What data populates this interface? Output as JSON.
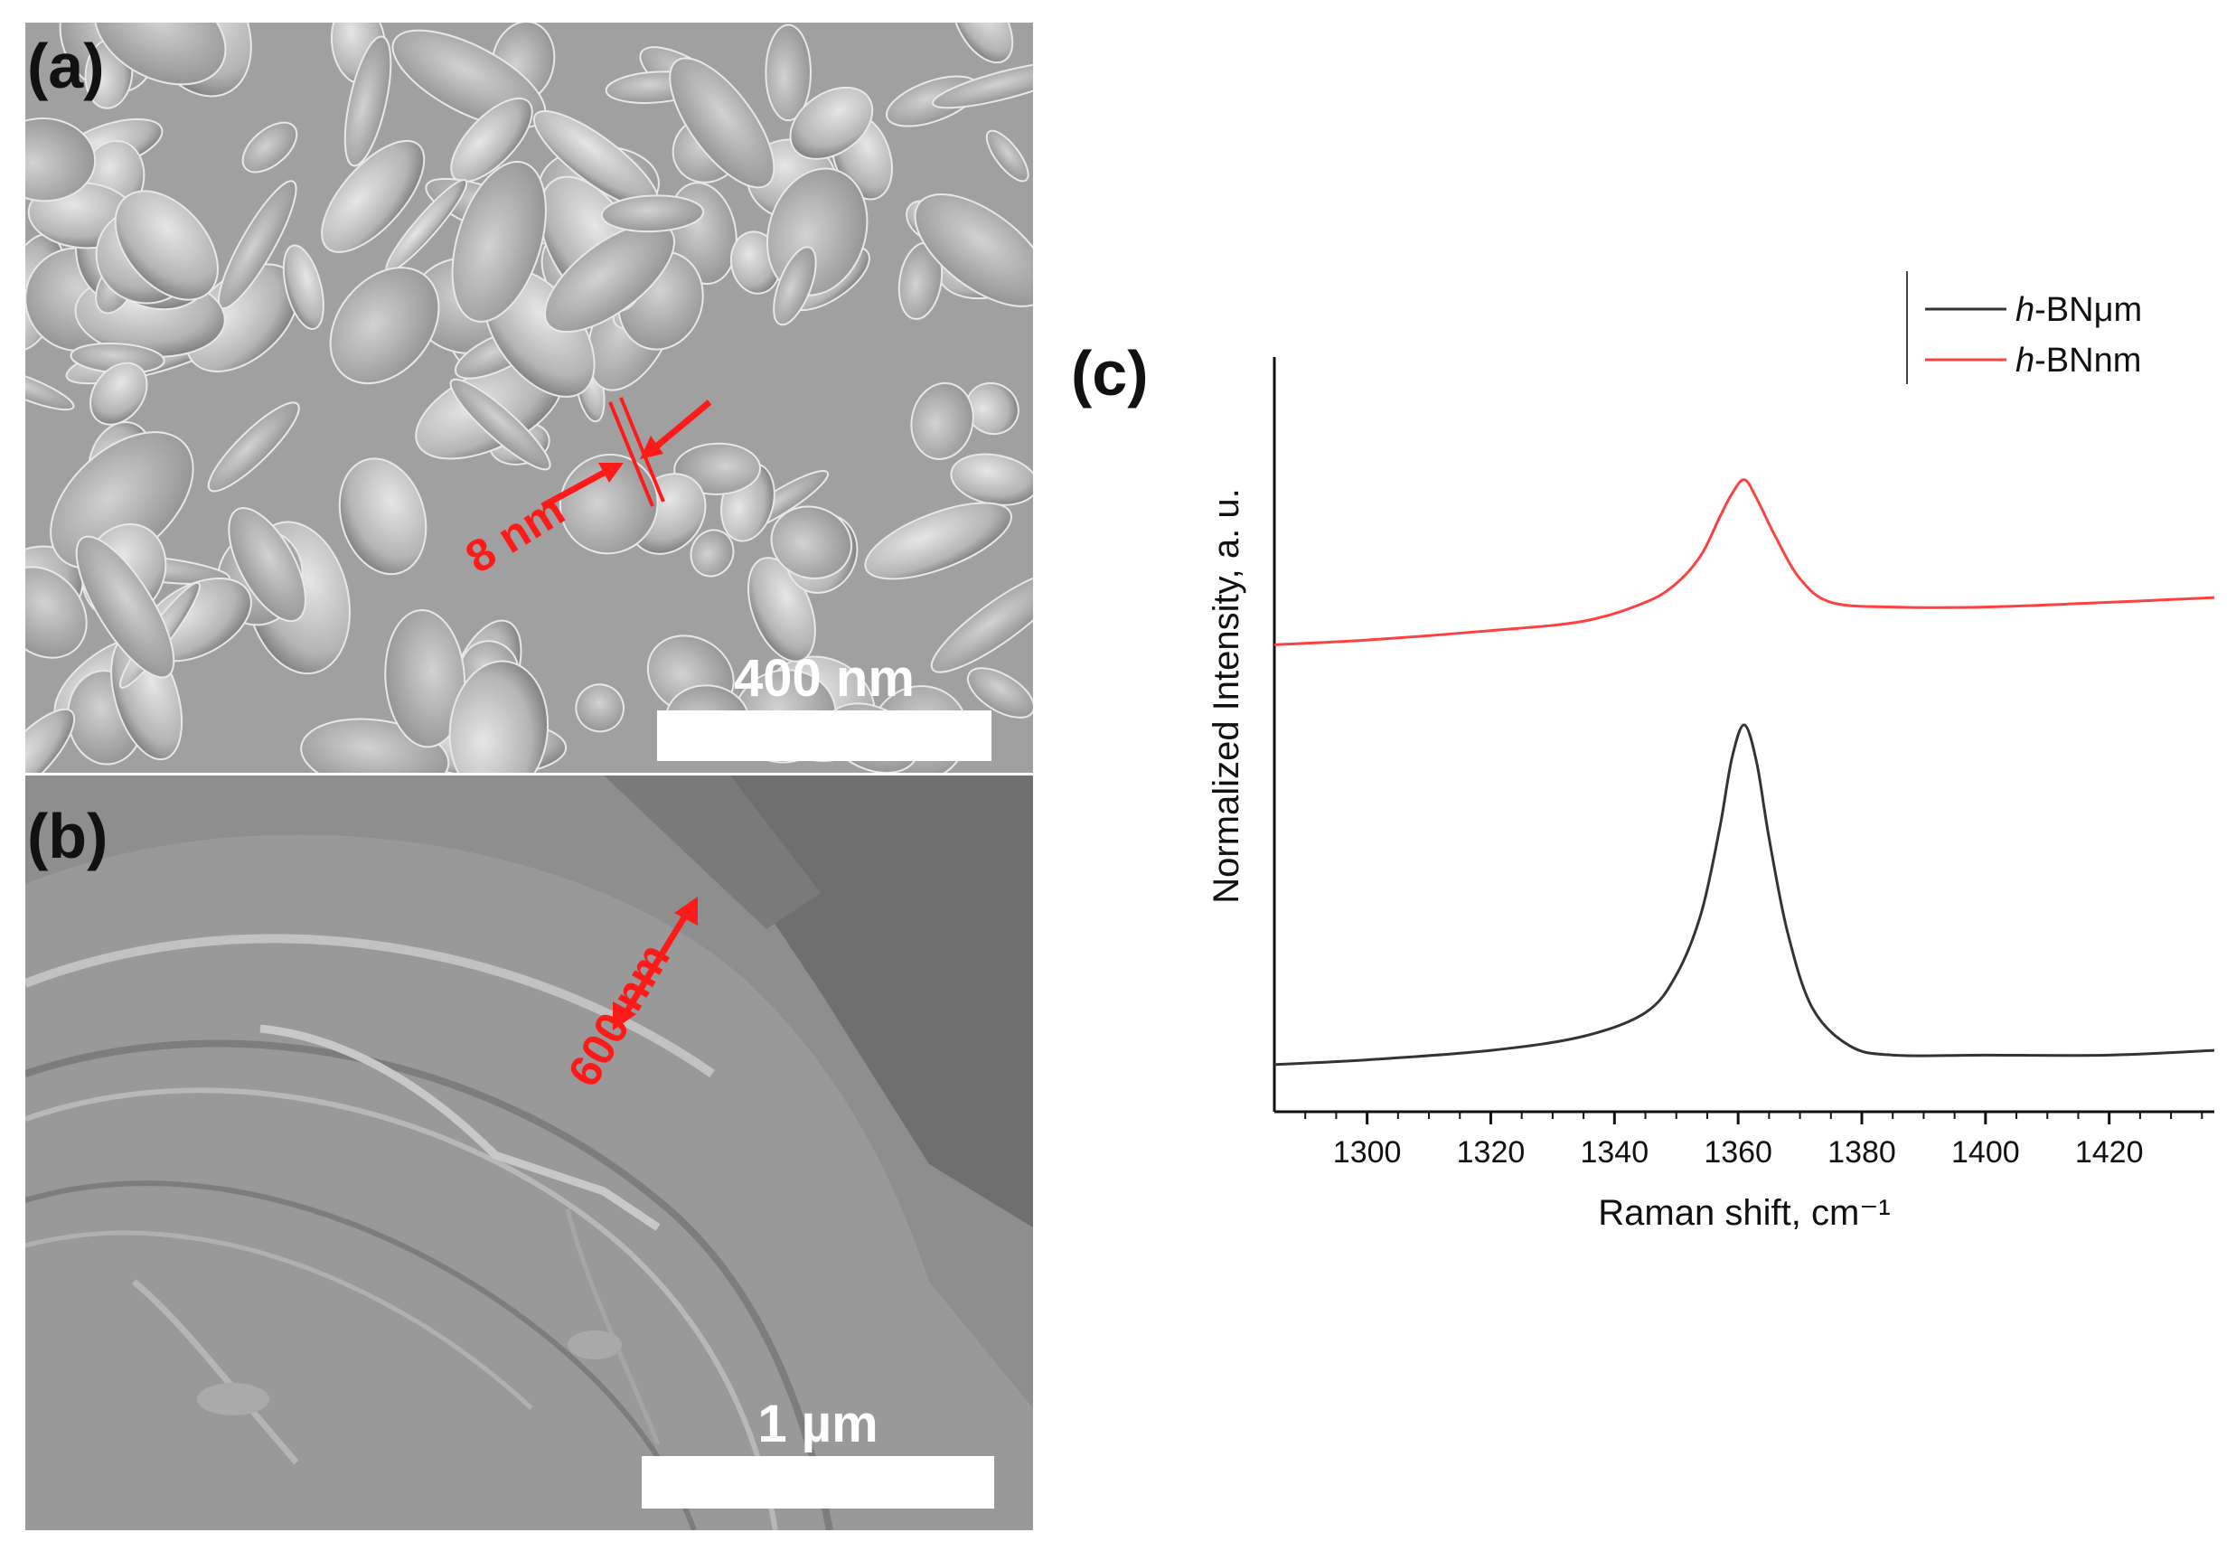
{
  "panels": {
    "a": {
      "label": "(a)",
      "scalebar_label": "400 nm",
      "measurement_label": "8 nm"
    },
    "b": {
      "label": "(b)",
      "scalebar_label": "1 µm",
      "measurement_label": "600 nm"
    },
    "c": {
      "label": "(c)"
    }
  },
  "colors": {
    "annotation": "#ff1a1a",
    "series_um": "#333333",
    "series_nm": "#ff4040",
    "sem_a_background": "#a8a8a8",
    "sem_b_background": "#8a8a8a"
  },
  "chart_data": {
    "type": "line",
    "title": "",
    "xlabel": "Raman shift, cm⁻¹",
    "ylabel": "Normalized Intensity, a. u.",
    "xlim": [
      1285,
      1437
    ],
    "ylim": [
      0,
      1.6
    ],
    "xticks": [
      1300,
      1320,
      1340,
      1360,
      1380,
      1400,
      1420
    ],
    "y_tick_labels_shown": false,
    "grid": false,
    "legend_position": "top-right",
    "series": [
      {
        "name": "h-BNμm",
        "name_italic": "h",
        "name_rest": "-BNμm",
        "color": "#333333",
        "x": [
          1285,
          1300,
          1320,
          1335,
          1345,
          1350,
          1354,
          1357,
          1359,
          1361,
          1363,
          1365,
          1368,
          1372,
          1378,
          1385,
          1400,
          1420,
          1437
        ],
        "y": [
          0.1,
          0.11,
          0.13,
          0.16,
          0.21,
          0.29,
          0.42,
          0.6,
          0.75,
          0.82,
          0.74,
          0.58,
          0.38,
          0.22,
          0.14,
          0.12,
          0.12,
          0.12,
          0.13
        ]
      },
      {
        "name": "h-BNnm",
        "name_italic": "h",
        "name_rest": "-BNnm",
        "color": "#ff4040",
        "x": [
          1285,
          1300,
          1320,
          1335,
          1345,
          1350,
          1354,
          1357,
          1359,
          1361,
          1363,
          1366,
          1370,
          1375,
          1385,
          1400,
          1420,
          1437
        ],
        "y": [
          0.99,
          1.0,
          1.02,
          1.04,
          1.08,
          1.12,
          1.18,
          1.26,
          1.31,
          1.34,
          1.3,
          1.22,
          1.13,
          1.08,
          1.07,
          1.07,
          1.08,
          1.09
        ]
      }
    ]
  }
}
